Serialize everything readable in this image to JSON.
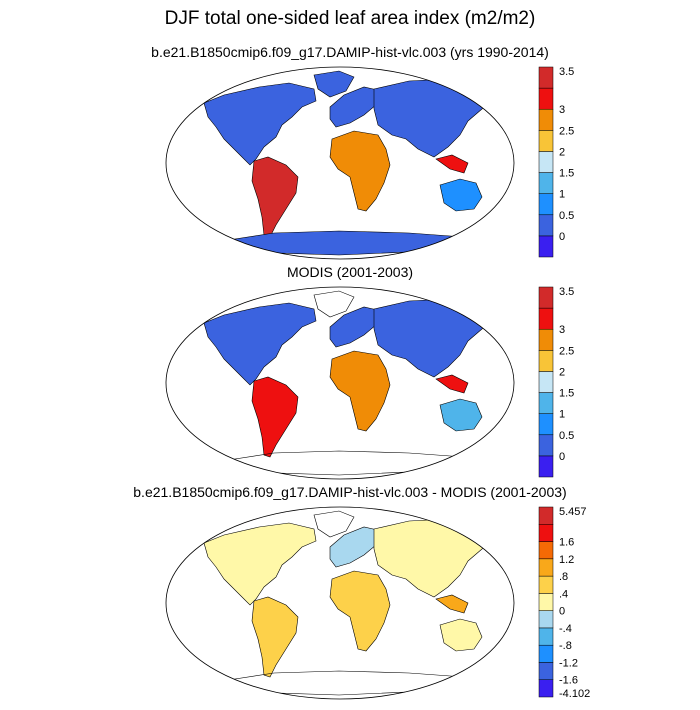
{
  "title": "DJF total one-sided leaf area index (m2/m2)",
  "panels": [
    {
      "id": "model",
      "title": "b.e21.B1850cmip6.f09_g17.DAMIP-hist-vlc.003 (yrs 1990-2014)",
      "colorbar": {
        "labels": [
          "0",
          "0.5",
          "1",
          "1.5",
          "2",
          "2.5",
          "3",
          "3.5"
        ],
        "colors": [
          "#3a1ff0",
          "#3b63df",
          "#1e90ff",
          "#4fb4ea",
          "#c6e6f5",
          "#f8c437",
          "#f08c06",
          "#ee1010",
          "#d22a2a"
        ],
        "label_slots": [
          1,
          2,
          3,
          4,
          5,
          6,
          7,
          8
        ]
      }
    },
    {
      "id": "modis",
      "title": "MODIS (2001-2003)",
      "colorbar": {
        "labels": [
          "0",
          "0.5",
          "1",
          "1.5",
          "2",
          "2.5",
          "3",
          "3.5"
        ],
        "colors": [
          "#3a1ff0",
          "#3b63df",
          "#1e90ff",
          "#4fb4ea",
          "#c6e6f5",
          "#f8c437",
          "#f08c06",
          "#ee1010",
          "#d22a2a"
        ],
        "label_slots": [
          1,
          2,
          3,
          4,
          5,
          6,
          7,
          8
        ]
      }
    },
    {
      "id": "difference",
      "title": "b.e21.B1850cmip6.f09_g17.DAMIP-hist-vlc.003 - MODIS (2001-2003)",
      "colorbar": {
        "labels": [
          "-4.102",
          "-1.6",
          "-1.2",
          "-.8",
          "-.4",
          "0",
          ".4",
          ".8",
          "1.2",
          "1.6",
          "5.457"
        ],
        "colors": [
          "#3a1ff0",
          "#3b63df",
          "#1e90ff",
          "#4fb4ea",
          "#a9d8ef",
          "#fff8a8",
          "#fdd14a",
          "#f9a81a",
          "#f56a05",
          "#ee1010",
          "#d22a2a"
        ],
        "label_slots": [
          0,
          1,
          2,
          3,
          4,
          5,
          6,
          7,
          8,
          9,
          10
        ]
      }
    }
  ]
}
